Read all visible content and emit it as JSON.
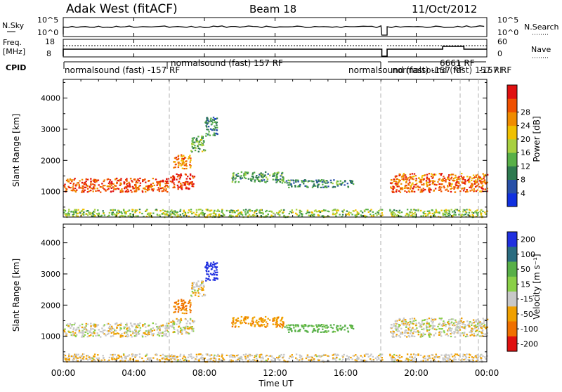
{
  "header": {
    "title": "Adak West (fitACF)",
    "beam": "Beam 18",
    "date": "11/Oct/2012"
  },
  "noise_panel": {
    "left_label": "N.Sky",
    "right_label": "N.Search",
    "left_ticks": [
      "10^5",
      "10^0"
    ],
    "right_ticks": [
      "10^5",
      "10^0"
    ]
  },
  "freq_panel": {
    "left_label_1": "Freq.",
    "left_label_2": "[MHz]",
    "right_label": "Nave",
    "left_ticks": [
      "18",
      "8"
    ],
    "right_ticks": [
      "60",
      "0"
    ]
  },
  "cpid_panel": {
    "label": "CPID",
    "modes": [
      {
        "text": "normalsound (fast) -157 RF"
      },
      {
        "text": "normalsound (fast) 157 RF"
      },
      {
        "text": "normalsound (fast) -157 RF"
      },
      {
        "text": "6661 RF"
      },
      {
        "text": "normalsound (fast) 157 RF"
      },
      {
        "text": "-157 RF"
      }
    ]
  },
  "axes": {
    "xlabel": "Time UT",
    "xticks": [
      "00:00",
      "04:00",
      "08:00",
      "12:00",
      "16:00",
      "20:00",
      "00:00"
    ],
    "ylabel": "Slant Range [km]",
    "yticks": [
      "1000",
      "2000",
      "3000",
      "4000"
    ]
  },
  "colorbars": {
    "power": {
      "label": "Power [dB]",
      "ticks": [
        "4",
        "8",
        "12",
        "16",
        "20",
        "24",
        "28"
      ],
      "colors": [
        "#1030e0",
        "#2850a8",
        "#2e7a50",
        "#58b048",
        "#a8d040",
        "#f0c000",
        "#f08c00",
        "#f05000",
        "#e01010"
      ]
    },
    "velocity": {
      "label": "Velocity [m s⁻¹]",
      "ticks": [
        "200",
        "100",
        "50",
        "15",
        "-15",
        "-50",
        "-100",
        "-200"
      ],
      "colors": [
        "#2030e0",
        "#2a6c80",
        "#58b048",
        "#8ad048",
        "#c8c8c8",
        "#f0a000",
        "#f07000",
        "#e01010"
      ]
    }
  },
  "chart_data": {
    "type": "heatmap",
    "title": "Adak West (fitACF) Beam 18 11/Oct/2012",
    "xlabel": "Time UT",
    "ylabel": "Slant Range [km]",
    "x_range_hours": [
      0,
      24
    ],
    "ylim": [
      180,
      4600
    ],
    "power_clim": [
      0,
      30
    ],
    "velocity_clim": [
      -200,
      200
    ],
    "regions": [
      {
        "name": "near-range band",
        "t": [
          0,
          6
        ],
        "r": [
          1000,
          1450
        ],
        "power": 25,
        "velocity": -5
      },
      {
        "name": "near-range band",
        "t": [
          6,
          7.4
        ],
        "r": [
          1100,
          1600
        ],
        "power": 27,
        "velocity": -5
      },
      {
        "name": "rising arc",
        "t": [
          6.2,
          7.2
        ],
        "r": [
          1750,
          2200
        ],
        "power": 22,
        "velocity": -60
      },
      {
        "name": "rising arc",
        "t": [
          7.2,
          8.0
        ],
        "r": [
          2300,
          2800
        ],
        "power": 12,
        "velocity": -10
      },
      {
        "name": "rising arc top",
        "t": [
          8.0,
          8.7
        ],
        "r": [
          2800,
          3400
        ],
        "power": 8,
        "velocity": 150
      },
      {
        "name": "morning band",
        "t": [
          9.5,
          12.5
        ],
        "r": [
          1300,
          1650
        ],
        "power": 10,
        "velocity": -40
      },
      {
        "name": "late morning band",
        "t": [
          12.5,
          16.5
        ],
        "r": [
          1150,
          1400
        ],
        "power": 9,
        "velocity": 30
      },
      {
        "name": "evening band",
        "t": [
          18.5,
          24
        ],
        "r": [
          1000,
          1600
        ],
        "power": 24,
        "velocity": -5
      },
      {
        "name": "near ground scatter",
        "t": [
          0,
          24
        ],
        "r": [
          200,
          450
        ],
        "power": 14,
        "velocity": -10
      }
    ]
  }
}
